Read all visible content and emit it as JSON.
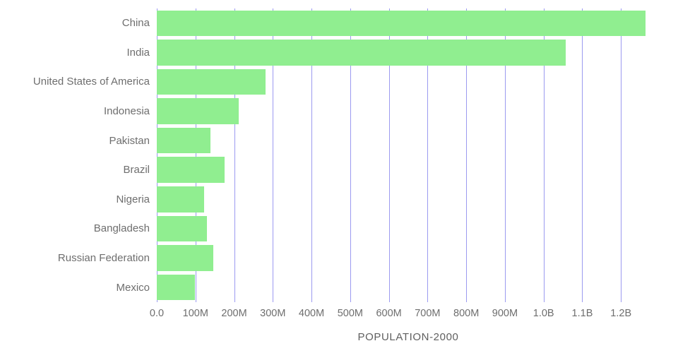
{
  "chart_data": {
    "type": "bar",
    "orientation": "horizontal",
    "title": "",
    "xlabel": "POPULATION-2000",
    "ylabel": "",
    "categories": [
      "China",
      "India",
      "United States of America",
      "Indonesia",
      "Pakistan",
      "Brazil",
      "Nigeria",
      "Bangladesh",
      "Russian Federation",
      "Mexico"
    ],
    "values": [
      1263000000,
      1057000000,
      282000000,
      211000000,
      138000000,
      175000000,
      122000000,
      129000000,
      146000000,
      98000000
    ],
    "xlim": [
      0,
      1300000000
    ],
    "xticks": [
      0,
      100000000,
      200000000,
      300000000,
      400000000,
      500000000,
      600000000,
      700000000,
      800000000,
      900000000,
      1000000000,
      1100000000,
      1200000000
    ],
    "xtick_labels": [
      "0.0",
      "100M",
      "200M",
      "300M",
      "400M",
      "500M",
      "600M",
      "700M",
      "800M",
      "900M",
      "1.0B",
      "1.1B",
      "1.2B"
    ],
    "grid": "vertical",
    "legend": "none",
    "bar_color": "#90ee90",
    "grid_color": "#9b9af0",
    "text_color": "#6e6e6e"
  }
}
